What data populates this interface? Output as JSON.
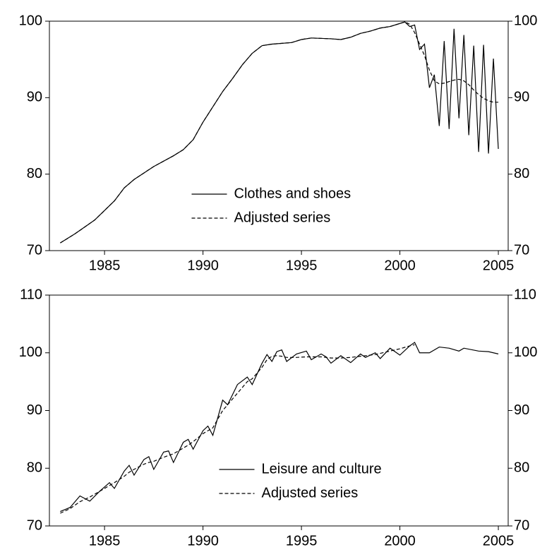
{
  "chart_data": [
    {
      "type": "line",
      "x": [
        1982.75,
        1983.5,
        1984.5,
        1985.5,
        1986,
        1986.5,
        1987.5,
        1988.5,
        1989,
        1989.5,
        1990,
        1990.5,
        1991,
        1991.5,
        1992,
        1992.5,
        1993,
        1993.5,
        1994.5,
        1995,
        1995.5,
        1996.5,
        1997,
        1997.5,
        1998,
        1998.5,
        1999,
        1999.5,
        2000,
        2000.25,
        2000.5,
        2000.75,
        2001,
        2001.25,
        2001.5,
        2001.75,
        2002,
        2002.25,
        2002.5,
        2002.75,
        2003,
        2003.25,
        2003.5,
        2003.75,
        2004,
        2004.25,
        2004.5,
        2004.75,
        2005
      ],
      "series": [
        {
          "name": "Clothes and shoes",
          "color": "#000000",
          "line_style": "solid",
          "values": [
            71,
            72.2,
            74,
            76.5,
            78.2,
            79.3,
            81,
            82.4,
            83.2,
            84.5,
            86.8,
            88.8,
            90.8,
            92.5,
            94.3,
            95.8,
            96.8,
            97,
            97.2,
            97.6,
            97.8,
            97.7,
            97.6,
            97.9,
            98.4,
            98.7,
            99.1,
            99.3,
            99.7,
            99.9,
            99.3,
            99.5,
            96.3,
            97,
            91.3,
            93,
            86.3,
            97.4,
            85.9,
            99,
            87.3,
            98.2,
            85.1,
            96.8,
            82.9,
            96.9,
            82.7,
            95.1,
            83.3
          ]
        },
        {
          "name": "Adjusted series",
          "color": "#000000",
          "line_style": "dashed",
          "values": [
            71,
            72.2,
            74,
            76.5,
            78.2,
            79.3,
            81,
            82.4,
            83.2,
            84.5,
            86.8,
            88.8,
            90.8,
            92.5,
            94.3,
            95.8,
            96.8,
            97,
            97.2,
            97.6,
            97.8,
            97.7,
            97.6,
            97.9,
            98.4,
            98.7,
            99.1,
            99.3,
            99.7,
            99.9,
            99.6,
            98.5,
            97,
            95.5,
            93.6,
            92.2,
            91.8,
            91.9,
            92.1,
            92.3,
            92.4,
            92.2,
            91.7,
            91,
            90.4,
            89.9,
            89.6,
            89.4,
            89.4
          ]
        }
      ],
      "xlim": [
        1982.2,
        2005.5
      ],
      "xticks": [
        1985,
        1990,
        1995,
        2000,
        2005
      ],
      "ylim": [
        70,
        100
      ],
      "yticks": [
        70,
        80,
        90,
        100
      ],
      "y2lim": [
        70,
        100
      ],
      "y2ticks": [
        70,
        80,
        90,
        100
      ],
      "grid": false,
      "legend": "lower center"
    },
    {
      "type": "line",
      "x": [
        1982.75,
        1983.25,
        1983.75,
        1984.25,
        1984.75,
        1985.25,
        1985.5,
        1986,
        1986.25,
        1986.5,
        1987,
        1987.25,
        1987.5,
        1988,
        1988.25,
        1988.5,
        1989,
        1989.25,
        1989.5,
        1990,
        1990.25,
        1990.5,
        1991,
        1991.25,
        1991.75,
        1992.25,
        1992.5,
        1993,
        1993.25,
        1993.5,
        1993.75,
        1994,
        1994.25,
        1994.75,
        1995.25,
        1995.5,
        1996,
        1996.25,
        1996.5,
        1997,
        1997.5,
        1998,
        1998.25,
        1998.75,
        1999,
        1999.5,
        2000,
        2000.5,
        2000.75,
        2001,
        2001.5,
        2002,
        2002.5,
        2003,
        2003.25,
        2004,
        2004.5,
        2005
      ],
      "series": [
        {
          "name": "Leisure and culture",
          "color": "#000000",
          "line_style": "solid",
          "values": [
            72.5,
            73.2,
            75.2,
            74.3,
            76,
            77.5,
            76.5,
            79.5,
            80.5,
            78.8,
            81.5,
            82,
            79.8,
            82.8,
            83,
            81,
            84.5,
            85,
            83.3,
            86.5,
            87.3,
            85.7,
            91.8,
            91,
            94.5,
            95.8,
            94.5,
            98.2,
            99.7,
            98.5,
            100.2,
            100.5,
            98.5,
            99.8,
            100.3,
            98.8,
            99.8,
            99.3,
            98.2,
            99.5,
            98.3,
            99.8,
            99.2,
            100,
            99,
            100.8,
            99.6,
            101.2,
            101.8,
            100,
            100,
            101,
            100.8,
            100.3,
            100.8,
            100.3,
            100.2,
            99.8
          ]
        },
        {
          "name": "Adjusted series",
          "color": "#000000",
          "line_style": "dashed",
          "values": [
            72.2,
            73.0,
            74.2,
            75.0,
            76.0,
            77.0,
            77.5,
            78.6,
            79.3,
            79.8,
            80.7,
            81.0,
            81.2,
            81.9,
            82.2,
            82.5,
            83.5,
            84.0,
            84.6,
            86.0,
            86.5,
            87.0,
            90.0,
            91.0,
            93.0,
            95.0,
            95.5,
            97.5,
            98.8,
            99.4,
            99.5,
            99.4,
            99.2,
            99.2,
            99.3,
            99.3,
            99.3,
            99.2,
            99.1,
            99.1,
            99.2,
            99.4,
            99.5,
            99.7,
            99.9,
            100.3,
            100.7,
            101.2,
            101.4,
            null,
            null,
            null,
            null,
            null,
            null,
            null,
            null,
            null
          ]
        }
      ],
      "xlim": [
        1982.2,
        2005.5
      ],
      "xticks": [
        1985,
        1990,
        1995,
        2000,
        2005
      ],
      "ylim": [
        70,
        110
      ],
      "yticks": [
        70,
        80,
        90,
        100,
        110
      ],
      "y2lim": [
        70,
        110
      ],
      "y2ticks": [
        70,
        80,
        90,
        100,
        110
      ],
      "grid": false,
      "legend": "lower center"
    }
  ]
}
